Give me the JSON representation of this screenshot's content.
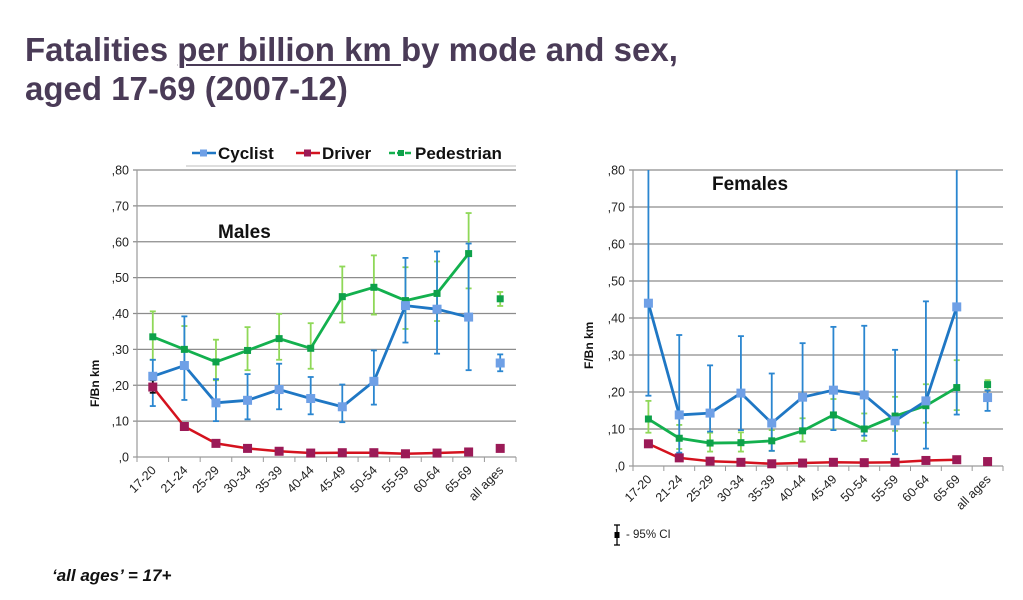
{
  "page": {
    "title_line1_pre": "Fatalities ",
    "title_line1_underlined": "per billion km ",
    "title_line1_post": "by mode and sex,",
    "title_line2": "aged 17-69 (2007-12)",
    "footnote": "‘all ages’ = 17+"
  },
  "colors": {
    "cyclist_line": "#1f77c4",
    "cyclist_marker": "#6fa0e6",
    "cyclist_ci": "#2a86d0",
    "driver_line": "#d4121e",
    "driver_marker": "#9b1a57",
    "pedestrian_line": "#13b04e",
    "pedestrian_marker": "#0ea14a",
    "pedestrian_ci": "#8fd858",
    "grid": "#8c8c8c",
    "title": "#4a3b57"
  },
  "legend": {
    "items": [
      {
        "label": "Cyclist",
        "series": "cyclist"
      },
      {
        "label": "Driver",
        "series": "driver"
      },
      {
        "label": "Pedestrian",
        "series": "pedestrian"
      }
    ],
    "ci_label": "- 95% CI"
  },
  "chart_data": [
    {
      "type": "line",
      "title": "Males",
      "xlabel": "",
      "ylabel": "F/Bn km",
      "ylim": [
        0,
        0.8
      ],
      "yticks": [
        ",0",
        ",10",
        ",20",
        ",30",
        ",40",
        ",50",
        ",60",
        ",70",
        ",80"
      ],
      "grid": true,
      "legend_position": "top",
      "categories": [
        "17-20",
        "21-24",
        "25-29",
        "30-34",
        "35-39",
        "40-44",
        "45-49",
        "50-54",
        "55-59",
        "60-64",
        "65-69",
        "all ages"
      ],
      "connected_until_index": 10,
      "series": [
        {
          "name": "Cyclist",
          "key": "cyclist",
          "values": [
            0.225,
            0.255,
            0.151,
            0.158,
            0.188,
            0.163,
            0.14,
            0.211,
            0.422,
            0.412,
            0.39,
            0.262
          ],
          "ci_low": [
            0.142,
            0.159,
            0.1,
            0.105,
            0.133,
            0.119,
            0.097,
            0.146,
            0.319,
            0.288,
            0.242,
            0.239
          ],
          "ci_high": [
            0.271,
            0.392,
            0.217,
            0.231,
            0.26,
            0.223,
            0.202,
            0.297,
            0.555,
            0.573,
            0.595,
            0.286
          ]
        },
        {
          "name": "Driver",
          "key": "driver",
          "values": [
            0.195,
            0.085,
            0.038,
            0.024,
            0.016,
            0.011,
            0.012,
            0.012,
            0.009,
            0.011,
            0.014,
            0.024
          ],
          "ci_low": [
            0.179,
            null,
            null,
            null,
            null,
            null,
            null,
            null,
            null,
            null,
            null,
            null
          ],
          "ci_high": [
            0.214,
            null,
            null,
            null,
            null,
            null,
            null,
            null,
            null,
            null,
            null,
            null
          ]
        },
        {
          "name": "Pedestrian",
          "key": "pedestrian",
          "values": [
            0.335,
            0.3,
            0.265,
            0.297,
            0.33,
            0.303,
            0.447,
            0.473,
            0.436,
            0.456,
            0.567,
            0.441
          ],
          "ci_low": [
            0.271,
            0.246,
            0.214,
            0.242,
            0.271,
            0.246,
            0.375,
            0.397,
            0.357,
            0.379,
            0.47,
            0.421
          ],
          "ci_high": [
            0.406,
            0.365,
            0.327,
            0.362,
            0.399,
            0.373,
            0.531,
            0.562,
            0.529,
            0.545,
            0.68,
            0.46
          ]
        }
      ]
    },
    {
      "type": "line",
      "title": "Females",
      "xlabel": "",
      "ylabel": "F/Bn km",
      "ylim": [
        0,
        0.8
      ],
      "yticks": [
        ",0",
        ",10",
        ",20",
        ",30",
        ",40",
        ",50",
        ",60",
        ",70",
        ",80"
      ],
      "grid": true,
      "categories": [
        "17-20",
        "21-24",
        "25-29",
        "30-34",
        "35-39",
        "40-44",
        "45-49",
        "50-54",
        "55-59",
        "60-64",
        "65-69",
        "all ages"
      ],
      "connected_until_index": 10,
      "series": [
        {
          "name": "Cyclist",
          "key": "cyclist",
          "values": [
            0.44,
            0.138,
            0.143,
            0.197,
            0.116,
            0.186,
            0.205,
            0.192,
            0.122,
            0.176,
            0.43,
            0.185
          ],
          "ci_low": [
            0.19,
            0.036,
            0.093,
            0.097,
            0.041,
            0.1,
            0.097,
            0.082,
            0.032,
            0.047,
            0.139,
            0.149
          ],
          "ci_high": [
            0.8,
            0.354,
            0.272,
            0.351,
            0.25,
            0.332,
            0.376,
            0.379,
            0.314,
            0.445,
            0.8,
            0.204
          ]
        },
        {
          "name": "Driver",
          "key": "driver",
          "values": [
            0.06,
            0.022,
            0.013,
            0.01,
            0.006,
            0.008,
            0.01,
            0.009,
            0.01,
            0.015,
            0.017,
            0.012
          ],
          "ci_low": [
            null,
            null,
            null,
            null,
            null,
            null,
            null,
            null,
            null,
            null,
            null,
            null
          ],
          "ci_high": [
            null,
            null,
            null,
            null,
            null,
            null,
            null,
            null,
            null,
            null,
            null,
            null
          ]
        },
        {
          "name": "Pedestrian",
          "key": "pedestrian",
          "values": [
            0.127,
            0.075,
            0.062,
            0.063,
            0.068,
            0.095,
            0.138,
            0.1,
            0.135,
            0.163,
            0.212,
            0.22
          ],
          "ci_low": [
            0.09,
            0.046,
            0.039,
            0.039,
            0.041,
            0.066,
            0.099,
            0.068,
            0.095,
            0.117,
            0.151,
            0.205
          ],
          "ci_high": [
            0.176,
            0.111,
            0.09,
            0.091,
            0.097,
            0.129,
            0.181,
            0.142,
            0.187,
            0.221,
            0.286,
            0.232
          ]
        }
      ]
    }
  ]
}
